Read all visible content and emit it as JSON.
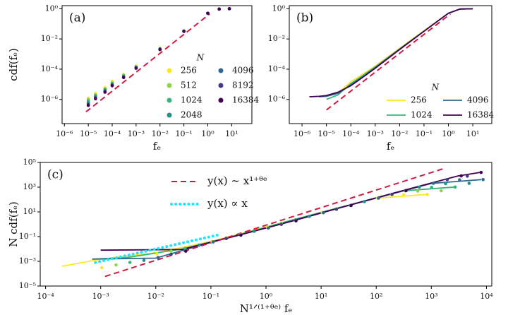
{
  "chart_data": [
    {
      "type": "scatter",
      "label": "(a)",
      "xlabel": "fₑ",
      "ylabel": "cdf(fₑ)",
      "log": true,
      "xlim": [
        8e-07,
        70
      ],
      "ylim": [
        2.5e-08,
        1.6
      ],
      "xticks": [
        {
          "value": 1e-06,
          "label": "10⁻⁶"
        },
        {
          "value": 1e-05,
          "label": "10⁻⁵"
        },
        {
          "value": 0.0001,
          "label": "10⁻⁴"
        },
        {
          "value": 0.001,
          "label": "10⁻³"
        },
        {
          "value": 0.01,
          "label": "10⁻²"
        },
        {
          "value": 0.1,
          "label": "10⁻¹"
        },
        {
          "value": 1,
          "label": "10⁰"
        },
        {
          "value": 10,
          "label": "10¹"
        }
      ],
      "yticks": [
        {
          "value": 1e-06,
          "label": "10⁻⁶"
        },
        {
          "value": 0.0001,
          "label": "10⁻⁴"
        },
        {
          "value": 0.01,
          "label": "10⁻²"
        },
        {
          "value": 1,
          "label": "10⁰"
        }
      ],
      "legend_title": "N",
      "legend_loc": "lower right",
      "legend_ncol": 2,
      "x": [
        1e-05,
        2e-05,
        5e-05,
        0.0001,
        0.0003,
        0.001,
        0.01,
        0.1,
        1,
        3,
        8
      ],
      "series": [
        {
          "name": "256",
          "color": "#fde725",
          "mode": "markers",
          "values": [
            1.2e-06,
            2.5e-06,
            6e-06,
            1.6e-05,
            4.5e-05,
            0.00016,
            0.0024,
            0.035,
            0.5,
            0.95,
            1
          ]
        },
        {
          "name": "512",
          "color": "#8fd744",
          "mode": "markers",
          "values": [
            1e-06,
            2e-06,
            5e-06,
            1.3e-05,
            4e-05,
            0.00015,
            0.0023,
            0.034,
            0.5,
            0.95,
            1
          ]
        },
        {
          "name": "1024",
          "color": "#35b779",
          "mode": "markers",
          "values": [
            8e-07,
            1.8e-06,
            4.5e-06,
            1.1e-05,
            3.6e-05,
            0.00014,
            0.0022,
            0.033,
            0.5,
            0.95,
            1
          ]
        },
        {
          "name": "2048",
          "color": "#21918c",
          "mode": "markers",
          "values": [
            6e-07,
            1.5e-06,
            4e-06,
            1e-05,
            3.3e-05,
            0.00013,
            0.0021,
            0.033,
            0.5,
            0.95,
            1
          ]
        },
        {
          "name": "4096",
          "color": "#31688e",
          "mode": "markers",
          "values": [
            5e-07,
            1.3e-06,
            3.5e-06,
            9e-06,
            3e-05,
            0.00012,
            0.0021,
            0.032,
            0.5,
            0.95,
            1
          ]
        },
        {
          "name": "8192",
          "color": "#443983",
          "mode": "markers",
          "values": [
            4.5e-07,
            1.2e-06,
            3.2e-06,
            8.5e-06,
            2.9e-05,
            0.00012,
            0.002,
            0.032,
            0.5,
            0.95,
            1
          ]
        },
        {
          "name": "16384",
          "color": "#440154",
          "mode": "markers",
          "values": [
            4e-07,
            1.1e-06,
            3e-06,
            8e-06,
            2.8e-05,
            0.000115,
            0.002,
            0.032,
            0.5,
            0.95,
            1
          ]
        },
        {
          "color": "#d1193f",
          "mode": "dashed",
          "x": [
            8e-06,
            1.2
          ],
          "values": [
            1.5e-07,
            0.45
          ]
        }
      ]
    },
    {
      "type": "line",
      "label": "(b)",
      "xlabel": "fₑ",
      "log": true,
      "xlim": [
        3e-07,
        60
      ],
      "ylim": [
        2.5e-08,
        1.6
      ],
      "xticks": [
        {
          "value": 1e-06,
          "label": "10⁻⁶"
        },
        {
          "value": 1e-05,
          "label": "10⁻⁵"
        },
        {
          "value": 0.0001,
          "label": "10⁻⁴"
        },
        {
          "value": 0.001,
          "label": "10⁻³"
        },
        {
          "value": 0.01,
          "label": "10⁻²"
        },
        {
          "value": 0.1,
          "label": "10⁻¹"
        },
        {
          "value": 1,
          "label": "10⁰"
        },
        {
          "value": 10,
          "label": "10¹"
        }
      ],
      "yticks": [
        {
          "value": 1e-06,
          "label": "10⁻⁶"
        },
        {
          "value": 0.0001,
          "label": "10⁻⁴"
        },
        {
          "value": 0.01,
          "label": "10⁻²"
        },
        {
          "value": 1,
          "label": "10⁰"
        }
      ],
      "legend_title": "N",
      "legend_loc": "lower right",
      "legend_ncol": 2,
      "x": [
        2e-06,
        5e-06,
        1e-05,
        3e-05,
        0.0001,
        0.0003,
        0.001,
        0.01,
        0.1,
        1,
        3,
        10
      ],
      "series": [
        {
          "name": "256",
          "color": "#fde725",
          "mode": "line",
          "values": [
            null,
            null,
            null,
            2.5e-06,
            1.5e-05,
            4.5e-05,
            0.00016,
            0.0024,
            0.035,
            0.5,
            0.95,
            1
          ]
        },
        {
          "name": "1024",
          "color": "#35b779",
          "mode": "line",
          "values": [
            null,
            null,
            1e-06,
            2e-06,
            1.1e-05,
            3.6e-05,
            0.00014,
            0.0022,
            0.033,
            0.5,
            0.95,
            1
          ]
        },
        {
          "name": "4096",
          "color": "#31688e",
          "mode": "line",
          "values": [
            null,
            1.5e-06,
            1.6e-06,
            2.5e-06,
            9e-06,
            3e-05,
            0.00012,
            0.0021,
            0.032,
            0.5,
            0.95,
            1
          ]
        },
        {
          "name": "16384",
          "color": "#440154",
          "mode": "line",
          "values": [
            1.5e-06,
            1.6e-06,
            1.8e-06,
            3e-06,
            8e-06,
            2.8e-05,
            0.000115,
            0.002,
            0.032,
            0.5,
            0.95,
            1
          ]
        },
        {
          "color": "#d1193f",
          "mode": "dashed",
          "x": [
            1e-05,
            1.2
          ],
          "values": [
            2e-07,
            0.45
          ]
        }
      ]
    },
    {
      "type": "scatter",
      "label": "(c)",
      "xlabel": "N¹ᐟ⁽¹⁺ᶿᵉ⁾ fₑ",
      "ylabel": "N cdf(fₑ)",
      "log": true,
      "xlim": [
        8e-05,
        12500
      ],
      "ylim": [
        1e-05,
        100000.0
      ],
      "xticks": [
        {
          "value": 0.0001,
          "label": "10⁻⁴"
        },
        {
          "value": 0.001,
          "label": "10⁻³"
        },
        {
          "value": 0.01,
          "label": "10⁻²"
        },
        {
          "value": 0.1,
          "label": "10⁻¹"
        },
        {
          "value": 1,
          "label": "10⁰"
        },
        {
          "value": 10,
          "label": "10¹"
        },
        {
          "value": 100,
          "label": "10²"
        },
        {
          "value": 1000,
          "label": "10³"
        },
        {
          "value": 10000,
          "label": "10⁴"
        }
      ],
      "yticks": [
        {
          "value": 1e-05,
          "label": "10⁻⁵"
        },
        {
          "value": 0.001,
          "label": "10⁻³"
        },
        {
          "value": 0.1,
          "label": "10⁻¹"
        },
        {
          "value": 10,
          "label": "10¹"
        },
        {
          "value": 1000,
          "label": "10³"
        },
        {
          "value": 100000,
          "label": "10⁵"
        }
      ],
      "legend_loc": "upper left",
      "legend_ncol": 1,
      "series": [
        {
          "color": "#fde725",
          "mode": "line",
          "x": [
            0.0002,
            0.001,
            0.01,
            0.1,
            1,
            10,
            100,
            800
          ],
          "values": [
            0.0004,
            0.0015,
            0.005,
            0.04,
            0.6,
            9,
            128,
            256
          ]
        },
        {
          "color": "#35b779",
          "mode": "line",
          "x": [
            0.0007,
            0.003,
            0.03,
            0.3,
            3,
            30,
            300,
            2700
          ],
          "values": [
            0.0015,
            0.002,
            0.01,
            0.13,
            2.2,
            33,
            500,
            1024
          ]
        },
        {
          "color": "#31688e",
          "mode": "line",
          "x": [
            0.0007,
            0.01,
            0.1,
            1,
            10,
            100,
            1000,
            8000
          ],
          "values": [
            0.0015,
            0.0018,
            0.035,
            0.5,
            8.6,
            130,
            2000,
            4096
          ]
        },
        {
          "color": "#440154",
          "mode": "line",
          "x": [
            0.001,
            0.03,
            0.3,
            3,
            30,
            300,
            3000,
            8000
          ],
          "values": [
            0.008,
            0.009,
            0.12,
            1.8,
            32,
            520,
            8000,
            16000
          ]
        },
        {
          "color": "#fde725",
          "mode": "markers",
          "x": [
            0.00105,
            0.0105,
            0.105,
            1.05,
            10.5,
            105,
            315,
            840
          ],
          "values": [
            0.00031,
            0.0041,
            0.041,
            0.61,
            9,
            128,
            243,
            256
          ]
        },
        {
          "color": "#8fd744",
          "mode": "markers",
          "x": [
            0.0019,
            0.019,
            0.19,
            1.9,
            19,
            189,
            567,
            1512
          ],
          "values": [
            0.00051,
            0.0067,
            0.077,
            1.18,
            17.4,
            256,
            486,
            512
          ]
        },
        {
          "color": "#35b779",
          "mode": "markers",
          "x": [
            0.0034,
            0.034,
            0.34,
            3.4,
            34,
            338,
            1014,
            2704
          ],
          "values": [
            0.00082,
            0.011,
            0.143,
            2.25,
            33.8,
            512,
            973,
            1024
          ]
        },
        {
          "color": "#21918c",
          "mode": "markers",
          "x": [
            0.0061,
            0.061,
            0.61,
            6.1,
            61,
            606,
            1818,
            4848
          ],
          "values": [
            0.0012,
            0.02,
            0.27,
            4.3,
            67.6,
            1024,
            1946,
            2048
          ]
        },
        {
          "color": "#31688e",
          "mode": "markers",
          "x": [
            0.011,
            0.11,
            1.1,
            11,
            110,
            1085,
            3255,
            8680
          ],
          "values": [
            0.002,
            0.037,
            0.49,
            8.6,
            131,
            2048,
            3891,
            4096
          ]
        },
        {
          "color": "#443983",
          "mode": "markers",
          "x": [
            0.019,
            0.19,
            1.9,
            19,
            194,
            1944,
            4500
          ],
          "values": [
            0.0037,
            0.07,
            0.98,
            16.4,
            262,
            4096,
            7782
          ]
        },
        {
          "color": "#440154",
          "mode": "markers",
          "x": [
            0.035,
            0.35,
            3.5,
            35,
            348,
            3482,
            8000
          ],
          "values": [
            0.0066,
            0.13,
            1.9,
            32.8,
            524,
            8192,
            15565
          ]
        },
        {
          "name": "y(x) ∼ x¹⁺ᶿᵉ",
          "color": "#d1193f",
          "mode": "dashed",
          "x": [
            0.0012,
            1600
          ],
          "values": [
            6e-05,
            30000
          ]
        },
        {
          "name": "y(x) ∝ x",
          "color": "#1ee6ff",
          "mode": "dotted",
          "x": [
            0.0008,
            0.15
          ],
          "values": [
            0.0008,
            0.15
          ]
        }
      ]
    }
  ]
}
